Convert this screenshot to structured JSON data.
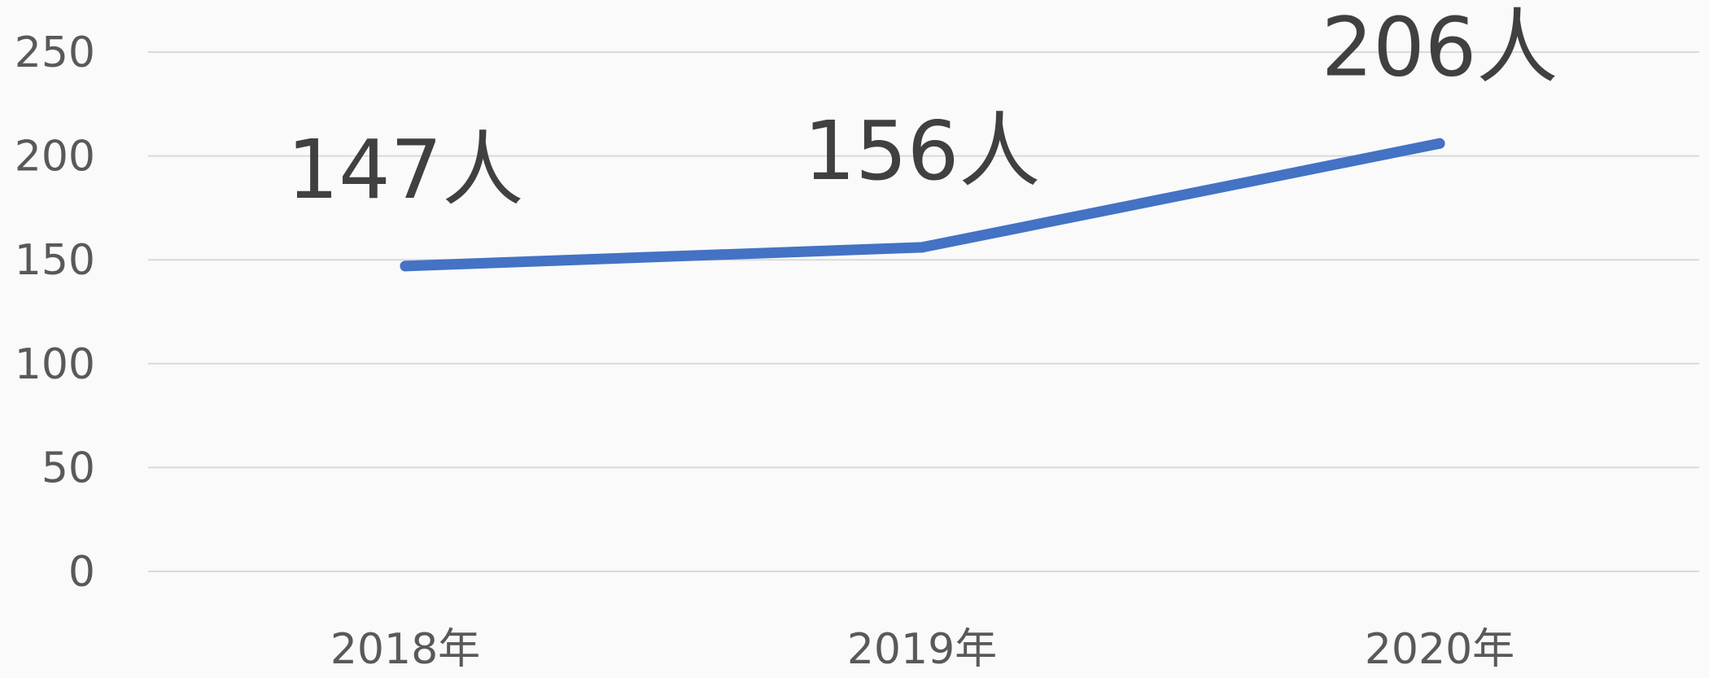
{
  "chart_data": {
    "type": "line",
    "categories": [
      "2018年",
      "2019年",
      "2020年"
    ],
    "series": [
      {
        "values": [
          147,
          156,
          206
        ],
        "color": "#4472c4"
      }
    ],
    "data_labels": [
      "147人",
      "156人",
      "206人"
    ],
    "yticks": [
      0,
      50,
      100,
      150,
      200,
      250
    ],
    "ylim": [
      0,
      250
    ],
    "grid": true,
    "title": "",
    "xlabel": "",
    "ylabel": ""
  }
}
